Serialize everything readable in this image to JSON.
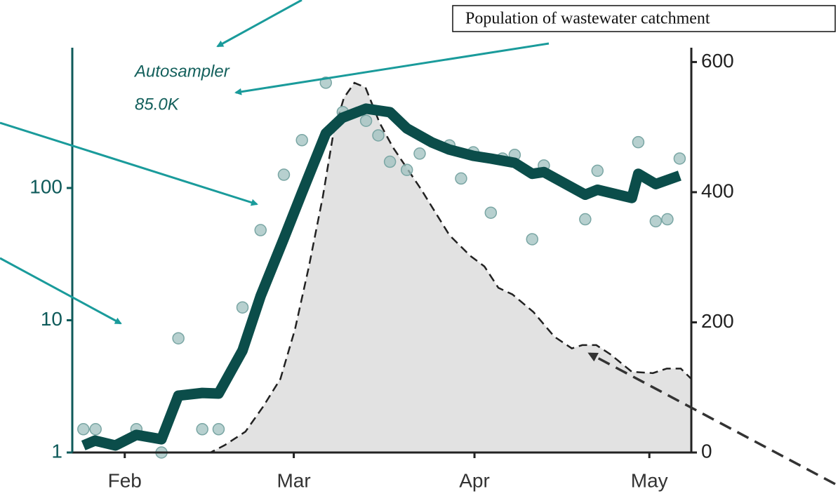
{
  "chart_data": {
    "type": "line",
    "annotations": [
      "Autosampler",
      "85.0K",
      "Population of wastewater catchment"
    ],
    "xlim": [
      23,
      129.2
    ],
    "xticks": [
      {
        "value": 32,
        "label": "Feb"
      },
      {
        "value": 61,
        "label": "Mar"
      },
      {
        "value": 92,
        "label": "Apr"
      },
      {
        "value": 122,
        "label": "May"
      }
    ],
    "ylim": [
      1,
      1150
    ],
    "yscale": "log",
    "yticks": [
      1,
      10,
      100
    ],
    "y2lim": [
      0,
      622
    ],
    "y2ticks": [
      0,
      200,
      400,
      600
    ],
    "series": [
      {
        "type": "area",
        "axis": "y2",
        "color": "#e2e2e2",
        "x": [
          23.2,
          46.7,
          49.1,
          52.7,
          55.7,
          58.7,
          61.2,
          63.6,
          66,
          67.8,
          69.6,
          71.4,
          73.3,
          75.7,
          78,
          80.4,
          82.8,
          87.7,
          91.3,
          93.7,
          96.1,
          98.5,
          102.1,
          105.7,
          108.7,
          110.5,
          112.9,
          115.3,
          119,
          122.6,
          125,
          127.4,
          129.2
        ],
        "values": [
          0,
          0,
          11,
          32,
          70,
          113,
          189,
          286,
          394,
          491,
          545,
          568,
          561,
          507,
          469,
          437,
          405,
          334,
          302,
          286,
          253,
          243,
          216,
          178,
          160,
          165,
          165,
          151,
          124,
          122,
          129,
          129,
          113
        ]
      },
      {
        "type": "scatter",
        "color": "#9fc0bf",
        "x": [
          24.9,
          27,
          34,
          38.3,
          41.2,
          45.3,
          48.1,
          52.2,
          55.3,
          59.3,
          62.4,
          66.5,
          69.4,
          73.4,
          75.5,
          77.5,
          80.4,
          82.6,
          87.7,
          89.7,
          91.8,
          94.8,
          96.8,
          98.9,
          101.9,
          103.9,
          111,
          113.1,
          120.1,
          123.1,
          125.1,
          127.2
        ],
        "values": [
          1.5,
          1.5,
          1.5,
          1,
          7.3,
          1.5,
          1.5,
          12.5,
          48,
          126,
          230,
          625,
          375,
          322,
          250,
          158,
          137,
          182,
          210,
          118,
          186,
          65,
          167,
          178,
          41,
          148,
          58,
          135,
          222,
          56,
          58,
          167
        ]
      },
      {
        "type": "line",
        "color": "#0b4d4a",
        "x": [
          24.9,
          26.9,
          30.4,
          34,
          38.3,
          41.2,
          45.3,
          48.1,
          52.2,
          55.3,
          59.3,
          62.4,
          66.5,
          69.3,
          73.4,
          77.5,
          80.4,
          84.7,
          87.7,
          91.8,
          94.8,
          98.9,
          101.9,
          103.9,
          111,
          113.1,
          119,
          120.1,
          123.1,
          127.2
        ],
        "values": [
          1.13,
          1.23,
          1.13,
          1.36,
          1.26,
          2.69,
          2.82,
          2.79,
          5.9,
          15.2,
          41.5,
          92,
          259,
          339,
          398,
          374,
          282,
          221,
          195,
          175,
          167,
          155,
          128,
          132,
          89,
          97,
          84,
          128,
          107,
          124
        ]
      }
    ]
  }
}
